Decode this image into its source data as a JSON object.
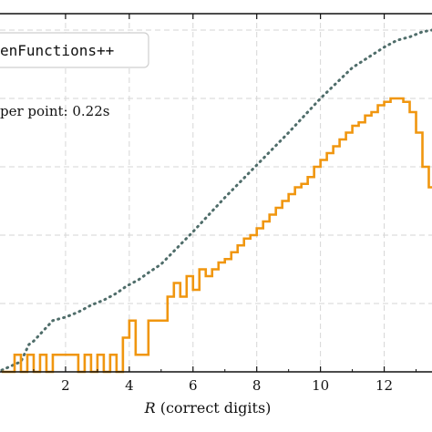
{
  "chart_data": {
    "type": "line",
    "title": "",
    "xlabel_italic": "R",
    "xlabel_rest": " (correct digits)",
    "ylabel": "",
    "xlim": [
      0,
      13.5
    ],
    "ylim": [
      0,
      1
    ],
    "grid": true,
    "grid_style": "dashed",
    "legend": {
      "text": "enFunctions++",
      "placement": "top-left (clipped)"
    },
    "annotation": "per point: 0.22s",
    "x_ticks": [
      2,
      4,
      6,
      8,
      10,
      12
    ],
    "x_tick_labels": [
      "2",
      "4",
      "6",
      "8",
      "10",
      "12"
    ],
    "colors": {
      "orange": "#f0960f",
      "dotted": "#4f6d6a",
      "grid": "#d6d6d6"
    },
    "series": [
      {
        "style": "dotted",
        "color": "#4f6d6a",
        "x": [
          0,
          0.6,
          0.85,
          1.0,
          1.2,
          1.4,
          1.6,
          2.0,
          2.4,
          2.8,
          3.2,
          3.6,
          3.9,
          4.1,
          4.3,
          4.6,
          5.0,
          6.0,
          7.0,
          8.0,
          9.0,
          10.0,
          11.0,
          12.0,
          12.4,
          12.8,
          13.2,
          13.5
        ],
        "y": [
          0.005,
          0.03,
          0.08,
          0.09,
          0.11,
          0.13,
          0.15,
          0.16,
          0.175,
          0.195,
          0.21,
          0.23,
          0.25,
          0.26,
          0.27,
          0.29,
          0.315,
          0.41,
          0.51,
          0.605,
          0.7,
          0.8,
          0.89,
          0.95,
          0.97,
          0.98,
          0.995,
          1.0
        ]
      },
      {
        "style": "steps-post",
        "color": "#f0960f",
        "x": [
          0,
          0.4,
          0.6,
          0.8,
          1.0,
          1.2,
          1.4,
          1.6,
          1.8,
          2.0,
          2.2,
          2.4,
          2.6,
          2.8,
          3.0,
          3.2,
          3.4,
          3.6,
          3.8,
          4.0,
          4.2,
          4.4,
          4.6,
          4.8,
          5.0,
          5.2,
          5.4,
          5.6,
          5.8,
          6.0,
          6.2,
          6.4,
          6.6,
          6.8,
          7.0,
          7.2,
          7.4,
          7.6,
          7.8,
          8.0,
          8.2,
          8.4,
          8.6,
          8.8,
          9.0,
          9.2,
          9.4,
          9.6,
          9.8,
          10.0,
          10.2,
          10.4,
          10.6,
          10.8,
          11.0,
          11.2,
          11.4,
          11.6,
          11.8,
          12.0,
          12.2,
          12.4,
          12.6,
          12.8,
          13.0,
          13.2,
          13.4,
          13.5
        ],
        "y": [
          0.0,
          0.05,
          0.0,
          0.05,
          0.0,
          0.05,
          0.0,
          0.05,
          0.05,
          0.05,
          0.05,
          0.0,
          0.05,
          0.0,
          0.05,
          0.0,
          0.05,
          0.0,
          0.1,
          0.15,
          0.05,
          0.05,
          0.15,
          0.15,
          0.15,
          0.22,
          0.26,
          0.22,
          0.28,
          0.24,
          0.3,
          0.28,
          0.3,
          0.32,
          0.33,
          0.35,
          0.37,
          0.39,
          0.4,
          0.42,
          0.44,
          0.46,
          0.48,
          0.5,
          0.52,
          0.54,
          0.55,
          0.57,
          0.6,
          0.62,
          0.64,
          0.66,
          0.68,
          0.7,
          0.72,
          0.73,
          0.75,
          0.76,
          0.78,
          0.79,
          0.8,
          0.8,
          0.79,
          0.76,
          0.7,
          0.6,
          0.54,
          0.54
        ]
      }
    ]
  }
}
